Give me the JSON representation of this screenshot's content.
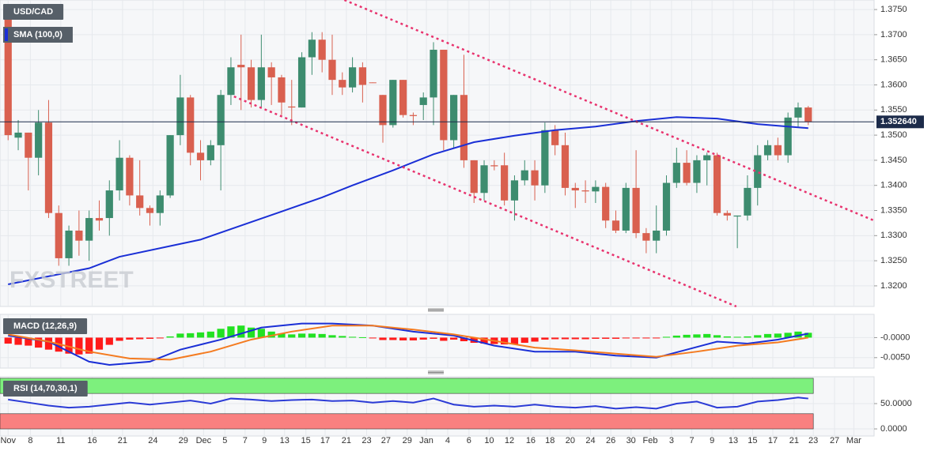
{
  "chart_data": [
    {
      "type": "candlestick",
      "title": "USD/CAD",
      "watermark": "FXSTREET",
      "up_color": "#3d8c6f",
      "down_color": "#d9604f",
      "open": [
        1.3745,
        1.3495,
        1.3505,
        1.3455,
        1.3525,
        1.3345,
        1.3255,
        1.331,
        1.329,
        1.3335,
        1.3335,
        1.339,
        1.3455,
        1.338,
        1.3355,
        1.3345,
        1.338,
        1.35,
        1.3575,
        1.3465,
        1.345,
        1.348,
        1.358,
        1.364,
        1.3635,
        1.357,
        1.3635,
        1.3615,
        1.3557,
        1.3555,
        1.3655,
        1.369,
        1.365,
        1.361,
        1.3595,
        1.3635,
        1.3605,
        1.358,
        1.352,
        1.361,
        1.354,
        1.356,
        1.3575,
        1.367,
        1.349,
        1.358,
        1.345,
        1.3385,
        1.344,
        1.344,
        1.337,
        1.341,
        1.343,
        1.34,
        1.351,
        1.348,
        1.3395,
        1.339,
        1.3388,
        1.3397,
        1.333,
        1.331,
        1.3395,
        1.3305,
        1.329,
        1.331,
        1.3405,
        1.3445,
        1.3405,
        1.345,
        1.346,
        1.3345,
        1.3338,
        1.334,
        1.3395,
        1.346,
        1.348,
        1.346,
        1.3535,
        1.3555
      ],
      "high": [
        1.375,
        1.353,
        1.3505,
        1.355,
        1.357,
        1.336,
        1.332,
        1.335,
        1.335,
        1.337,
        1.341,
        1.349,
        1.346,
        1.345,
        1.336,
        1.339,
        1.35,
        1.362,
        1.358,
        1.349,
        1.349,
        1.359,
        1.3655,
        1.37,
        1.365,
        1.37,
        1.3645,
        1.362,
        1.361,
        1.3665,
        1.3705,
        1.3705,
        1.37,
        1.3625,
        1.3655,
        1.3645,
        1.3605,
        1.358,
        1.361,
        1.361,
        1.3545,
        1.3585,
        1.3685,
        1.367,
        1.358,
        1.366,
        1.345,
        1.345,
        1.345,
        1.3465,
        1.342,
        1.345,
        1.345,
        1.3525,
        1.352,
        1.3505,
        1.3405,
        1.341,
        1.341,
        1.3405,
        1.335,
        1.3405,
        1.347,
        1.3315,
        1.336,
        1.342,
        1.3475,
        1.347,
        1.346,
        1.3465,
        1.3465,
        1.335,
        1.334,
        1.342,
        1.348,
        1.349,
        1.3495,
        1.3545,
        1.3565,
        1.3558
      ],
      "low": [
        1.349,
        1.347,
        1.339,
        1.342,
        1.3335,
        1.324,
        1.324,
        1.326,
        1.325,
        1.331,
        1.33,
        1.337,
        1.336,
        1.334,
        1.332,
        1.332,
        1.3375,
        1.348,
        1.344,
        1.341,
        1.344,
        1.339,
        1.356,
        1.355,
        1.3555,
        1.3555,
        1.356,
        1.354,
        1.352,
        1.3555,
        1.362,
        1.3625,
        1.358,
        1.358,
        1.3585,
        1.3565,
        1.3604,
        1.3485,
        1.3515,
        1.3535,
        1.352,
        1.353,
        1.352,
        1.347,
        1.3475,
        1.3435,
        1.3365,
        1.337,
        1.343,
        1.336,
        1.333,
        1.34,
        1.337,
        1.3385,
        1.346,
        1.338,
        1.3355,
        1.3365,
        1.3365,
        1.3315,
        1.3305,
        1.3305,
        1.3295,
        1.3265,
        1.3265,
        1.33,
        1.3395,
        1.34,
        1.3385,
        1.34,
        1.334,
        1.333,
        1.3275,
        1.333,
        1.336,
        1.345,
        1.345,
        1.3445,
        1.3515,
        1.352
      ],
      "close": [
        1.35,
        1.3505,
        1.3455,
        1.3525,
        1.3345,
        1.3255,
        1.331,
        1.329,
        1.3335,
        1.333,
        1.339,
        1.3455,
        1.338,
        1.3355,
        1.3345,
        1.338,
        1.35,
        1.3575,
        1.3465,
        1.345,
        1.348,
        1.358,
        1.3635,
        1.3635,
        1.357,
        1.3635,
        1.3615,
        1.3565,
        1.3555,
        1.3655,
        1.369,
        1.365,
        1.361,
        1.3595,
        1.3635,
        1.36,
        1.3604,
        1.352,
        1.361,
        1.354,
        1.3538,
        1.3575,
        1.367,
        1.349,
        1.358,
        1.345,
        1.3385,
        1.344,
        1.3438,
        1.337,
        1.341,
        1.343,
        1.34,
        1.351,
        1.348,
        1.3395,
        1.339,
        1.3388,
        1.3397,
        1.333,
        1.331,
        1.3395,
        1.3305,
        1.329,
        1.331,
        1.3405,
        1.3445,
        1.3405,
        1.345,
        1.346,
        1.3345,
        1.334,
        1.334,
        1.3395,
        1.346,
        1.348,
        1.346,
        1.3535,
        1.3555,
        1.3526
      ],
      "overlays": [
        {
          "name": "SMA (100,0)",
          "color": "#1a2fd6",
          "x": [
            0,
            8,
            11,
            19,
            23,
            27,
            31,
            34,
            38,
            42,
            46,
            50,
            54,
            58,
            62,
            66,
            70,
            74,
            77,
            79
          ],
          "values": [
            1.3203,
            1.3235,
            1.3258,
            1.3292,
            1.332,
            1.3348,
            1.3376,
            1.34,
            1.343,
            1.3462,
            1.3486,
            1.3499,
            1.351,
            1.3517,
            1.3528,
            1.3536,
            1.3533,
            1.3522,
            1.3517,
            1.3514
          ]
        }
      ],
      "trendlines": [
        {
          "color": "#e8336e",
          "x": [
            33.2,
            85.5
          ],
          "values": [
            1.3769,
            1.333
          ]
        },
        {
          "color": "#e8336e",
          "x": [
            22.3,
            71.9
          ],
          "values": [
            1.3577,
            1.3159
          ]
        }
      ],
      "price_line": {
        "value": 1.35264,
        "label": "1.352640"
      },
      "xlim": [
        -0.8,
        85.5
      ],
      "ylim": [
        1.3159,
        1.3769
      ],
      "yticks": [
        {
          "value": 1.375,
          "label": "1.3750"
        },
        {
          "value": 1.37,
          "label": "1.3700"
        },
        {
          "value": 1.365,
          "label": "1.3650"
        },
        {
          "value": 1.36,
          "label": "1.3600"
        },
        {
          "value": 1.355,
          "label": "1.3550"
        },
        {
          "value": 1.35,
          "label": "1.3500"
        },
        {
          "value": 1.345,
          "label": "1.3450"
        },
        {
          "value": 1.34,
          "label": "1.3400"
        },
        {
          "value": 1.335,
          "label": "1.3350"
        },
        {
          "value": 1.33,
          "label": "1.3300"
        },
        {
          "value": 1.325,
          "label": "1.3250"
        },
        {
          "value": 1.32,
          "label": "1.3200"
        }
      ],
      "xticks": [
        {
          "value": 0,
          "label": "Nov"
        },
        {
          "value": 2.2,
          "label": "8"
        },
        {
          "value": 5.2,
          "label": "11"
        },
        {
          "value": 8.3,
          "label": "16"
        },
        {
          "value": 11.3,
          "label": "21"
        },
        {
          "value": 14.3,
          "label": "24"
        },
        {
          "value": 17.3,
          "label": "29"
        },
        {
          "value": 19.3,
          "label": "Dec"
        },
        {
          "value": 21.4,
          "label": "5"
        },
        {
          "value": 23.4,
          "label": "7"
        },
        {
          "value": 25.3,
          "label": "9"
        },
        {
          "value": 27.3,
          "label": "13"
        },
        {
          "value": 29.4,
          "label": "15"
        },
        {
          "value": 31.3,
          "label": "17"
        },
        {
          "value": 33.4,
          "label": "21"
        },
        {
          "value": 35.4,
          "label": "23"
        },
        {
          "value": 37.3,
          "label": "27"
        },
        {
          "value": 39.4,
          "label": "29"
        },
        {
          "value": 41.3,
          "label": "Jan"
        },
        {
          "value": 43.4,
          "label": "4"
        },
        {
          "value": 45.5,
          "label": "6"
        },
        {
          "value": 47.5,
          "label": "10"
        },
        {
          "value": 49.5,
          "label": "12"
        },
        {
          "value": 51.6,
          "label": "16"
        },
        {
          "value": 53.5,
          "label": "18"
        },
        {
          "value": 55.5,
          "label": "20"
        },
        {
          "value": 57.5,
          "label": "24"
        },
        {
          "value": 59.5,
          "label": "26"
        },
        {
          "value": 61.5,
          "label": "30"
        },
        {
          "value": 63.4,
          "label": "Feb"
        },
        {
          "value": 65.5,
          "label": "3"
        },
        {
          "value": 67.5,
          "label": "7"
        },
        {
          "value": 69.5,
          "label": "9"
        },
        {
          "value": 71.6,
          "label": "13"
        },
        {
          "value": 73.5,
          "label": "15"
        },
        {
          "value": 75.5,
          "label": "17"
        },
        {
          "value": 77.6,
          "label": "21"
        },
        {
          "value": 79.5,
          "label": "23"
        },
        {
          "value": 81.6,
          "label": "27"
        },
        {
          "value": 83.5,
          "label": "Mar"
        }
      ],
      "grid": true
    },
    {
      "type": "macd",
      "title": "MACD (12,26,9)",
      "histogram": {
        "positive_color": "#22e122",
        "negative_color": "#ff1a1a",
        "values": [
          -0.0015,
          -0.0018,
          -0.002,
          -0.0025,
          -0.003,
          -0.0035,
          -0.004,
          -0.0042,
          -0.004,
          -0.003,
          -0.0018,
          -0.0008,
          -0.0005,
          -0.0004,
          -0.0003,
          -0.0002,
          0.0003,
          0.001,
          0.0011,
          0.0013,
          0.0015,
          0.0022,
          0.0028,
          0.003,
          0.0025,
          0.0022,
          0.0015,
          0.001,
          0.0008,
          0.001,
          0.001,
          0.0009,
          0.0006,
          0.0004,
          0.0002,
          0.0001,
          -0.0002,
          -0.0006,
          -0.0006,
          -0.0007,
          -0.0007,
          -0.0005,
          -0.0003,
          -0.0008,
          -0.0005,
          -0.0009,
          -0.0013,
          -0.0015,
          -0.0016,
          -0.0017,
          -0.0016,
          -0.0013,
          -0.001,
          -0.0005,
          -0.0004,
          -0.0004,
          -0.0004,
          -0.0004,
          -0.0003,
          -0.0003,
          -0.0003,
          -0.0002,
          -0.0002,
          -0.0002,
          -0.0001,
          0.0002,
          0.0005,
          0.0007,
          0.0008,
          0.0009,
          0.0006,
          0.0003,
          0.0002,
          0.0003,
          0.0006,
          0.0009,
          0.001,
          0.0012,
          0.0015,
          0.0012
        ]
      },
      "series": [
        {
          "color": "#1a2fd6",
          "x": [
            0,
            4,
            8,
            10,
            14,
            17,
            21,
            25,
            29,
            32,
            36,
            40,
            44,
            48,
            52,
            56,
            60,
            64,
            67,
            70,
            73,
            76,
            79
          ],
          "values": [
            0.0005,
            -0.001,
            -0.006,
            -0.0068,
            -0.006,
            -0.003,
            -0.0005,
            0.0025,
            0.0035,
            0.0035,
            0.003,
            0.0015,
            0.0005,
            -0.002,
            -0.0035,
            -0.0035,
            -0.0045,
            -0.005,
            -0.003,
            -0.001,
            -0.0015,
            -0.0005,
            0.001
          ]
        },
        {
          "color": "#f47b20",
          "x": [
            0,
            4,
            8,
            12,
            16,
            20,
            24,
            28,
            32,
            36,
            40,
            44,
            48,
            52,
            56,
            60,
            64,
            68,
            72,
            76,
            79
          ],
          "values": [
            0.0008,
            -0.001,
            -0.0035,
            -0.0052,
            -0.0055,
            -0.0035,
            -0.0005,
            0.0015,
            0.003,
            0.003,
            0.002,
            0.0008,
            -0.0008,
            -0.0025,
            -0.0032,
            -0.004,
            -0.0048,
            -0.0035,
            -0.002,
            -0.0012,
            0.0
          ]
        }
      ],
      "ylim": [
        -0.0076,
        0.0058
      ],
      "yticks": [
        {
          "value": 0,
          "label": "-0.0000"
        },
        {
          "value": -0.005,
          "label": "-0.0050"
        }
      ]
    },
    {
      "type": "rsi",
      "title": "RSI (14,70,30,1)",
      "bands": [
        {
          "range": [
            70,
            100
          ],
          "color": "#7df07d"
        },
        {
          "range": [
            0,
            30
          ],
          "color": "#f98080"
        }
      ],
      "series": [
        {
          "color": "#2b3bd6",
          "x": [
            0,
            2,
            4,
            6,
            8,
            10,
            12,
            14,
            16,
            18,
            20,
            22,
            24,
            26,
            28,
            30,
            32,
            34,
            36,
            38,
            40,
            42,
            44,
            46,
            48,
            50,
            52,
            54,
            56,
            58,
            60,
            62,
            64,
            66,
            68,
            70,
            72,
            74,
            76,
            78,
            79
          ],
          "values": [
            58,
            52,
            46,
            42,
            44,
            48,
            52,
            48,
            52,
            56,
            50,
            60,
            58,
            55,
            57,
            58,
            55,
            56,
            52,
            55,
            52,
            60,
            48,
            44,
            46,
            44,
            48,
            44,
            42,
            45,
            40,
            43,
            40,
            50,
            54,
            42,
            44,
            54,
            57,
            62,
            60
          ]
        }
      ],
      "ylim": [
        -14,
        103
      ],
      "yticks": [
        {
          "value": 50,
          "label": "50.0000"
        },
        {
          "value": 0,
          "label": "0.0000"
        }
      ]
    }
  ]
}
